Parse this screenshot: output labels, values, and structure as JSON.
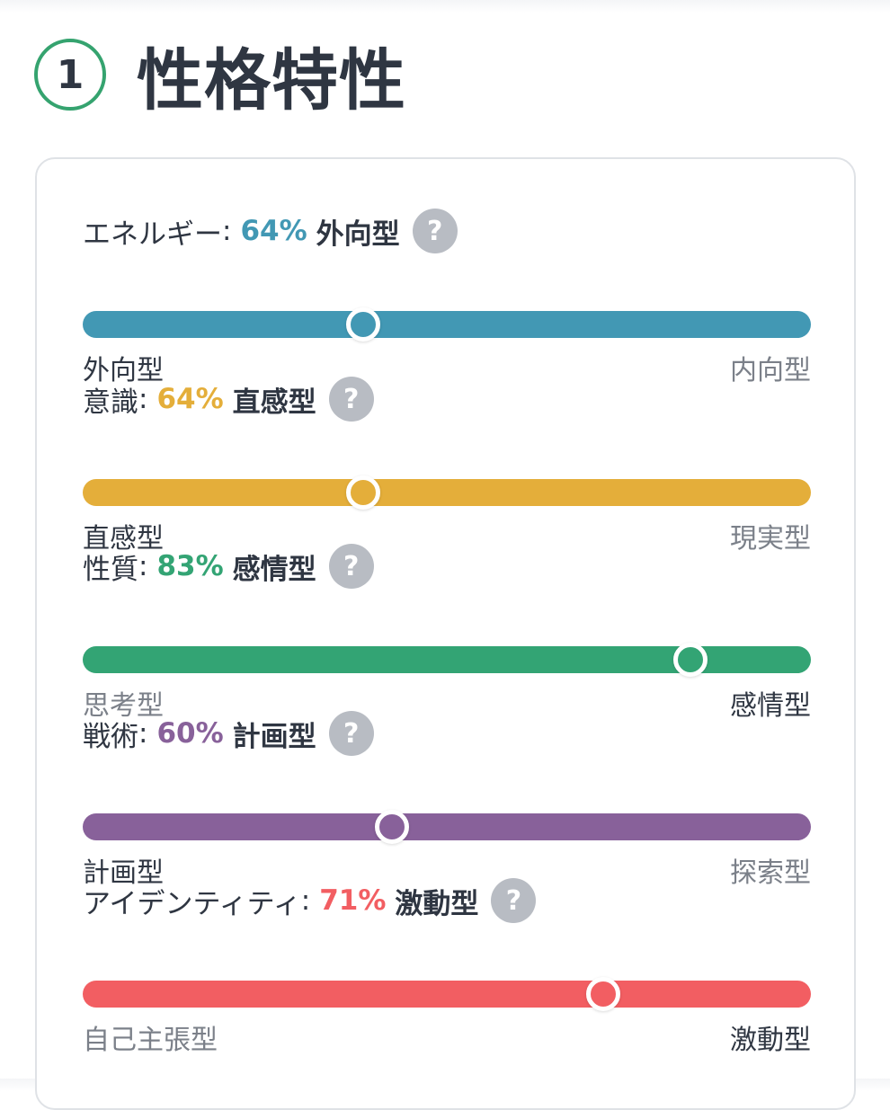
{
  "section": {
    "number": "1",
    "title": "性格特性"
  },
  "colors": {
    "accent_green": "#35a36f",
    "help_icon": "#b8bcc3"
  },
  "traits": [
    {
      "name": "エネルギー",
      "colon": ":",
      "percent_text": "64%",
      "type": "外向型",
      "help_symbol": "?",
      "color": "#4298b4",
      "position": 0.385,
      "left_label": "外向型",
      "right_label": "内向型",
      "active_side": "left"
    },
    {
      "name": "意識",
      "colon": ":",
      "percent_text": "64%",
      "type": "直感型",
      "help_symbol": "?",
      "color": "#e4ae3a",
      "position": 0.385,
      "left_label": "直感型",
      "right_label": "現実型",
      "active_side": "left"
    },
    {
      "name": "性質",
      "colon": ":",
      "percent_text": "83%",
      "type": "感情型",
      "help_symbol": "?",
      "color": "#33a474",
      "position": 0.835,
      "left_label": "思考型",
      "right_label": "感情型",
      "active_side": "right"
    },
    {
      "name": "戦術",
      "colon": ":",
      "percent_text": "60%",
      "type": "計画型",
      "help_symbol": "?",
      "color": "#88619a",
      "position": 0.425,
      "left_label": "計画型",
      "right_label": "探索型",
      "active_side": "left"
    },
    {
      "name": "アイデンティティ",
      "colon": ":",
      "percent_text": "71%",
      "type": "激動型",
      "help_symbol": "?",
      "color": "#f25e62",
      "position": 0.715,
      "left_label": "自己主張型",
      "right_label": "激動型",
      "active_side": "right"
    }
  ]
}
